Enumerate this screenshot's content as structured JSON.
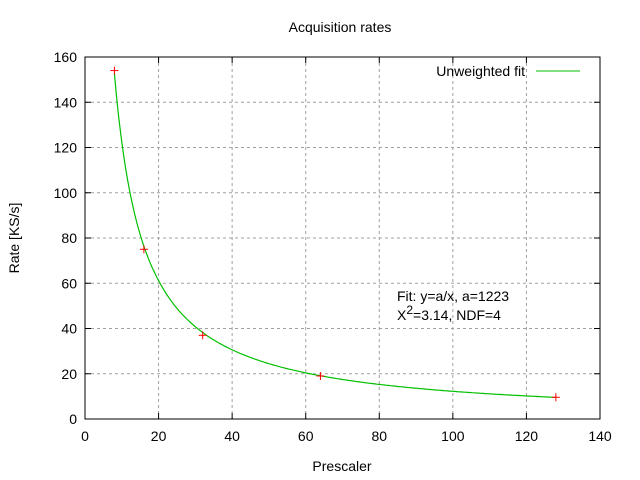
{
  "chart_data": {
    "type": "scatter",
    "title": "Acquisition rates",
    "xlabel": "Prescaler",
    "ylabel": "Rate [KS/s]",
    "xlim": [
      0,
      140
    ],
    "ylim": [
      0,
      160
    ],
    "xticks": [
      "0",
      "20",
      "40",
      "60",
      "80",
      "100",
      "120",
      "140"
    ],
    "yticks": [
      "0",
      "20",
      "40",
      "60",
      "80",
      "100",
      "120",
      "140",
      "160"
    ],
    "grid": true,
    "legend_position": "top-right",
    "points": {
      "x": [
        8,
        16,
        32,
        64,
        128
      ],
      "y": [
        154,
        75,
        37,
        19,
        9.6
      ],
      "color": "#ff0000",
      "marker": "plus"
    },
    "fit": {
      "name": "Unweighted fit",
      "a": 1223,
      "x_range": [
        8,
        128
      ],
      "color": "#00c000"
    },
    "annotation": {
      "line1": "Fit: y=a/x, a=1223",
      "chi_base": "X",
      "chi_sup": "2",
      "line2_rest": "=3.14, NDF=4"
    }
  }
}
